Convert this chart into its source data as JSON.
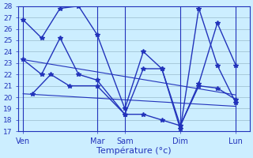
{
  "xlabel": "Température (°c)",
  "bg_color": "#cceeff",
  "line_color": "#2233bb",
  "grid_color": "#99bbcc",
  "ylim": [
    17,
    28
  ],
  "yticks": [
    17,
    18,
    19,
    20,
    21,
    22,
    23,
    24,
    25,
    26,
    27,
    28
  ],
  "day_tick_positions": [
    0,
    8,
    11,
    17,
    23
  ],
  "day_tick_labels": [
    "Ven",
    "Mar",
    "Sam",
    "Dim",
    "Lun"
  ],
  "day_sep_x": [
    0,
    8,
    11,
    17,
    23
  ],
  "xlim": [
    -0.5,
    24.5
  ],
  "line1_x": [
    0,
    2,
    4,
    6,
    8,
    11,
    13,
    15,
    17,
    19,
    21,
    23
  ],
  "line1_y": [
    26.8,
    25.2,
    27.8,
    28.0,
    25.5,
    19.0,
    24.0,
    22.5,
    17.2,
    27.8,
    22.8,
    19.5
  ],
  "line2_x": [
    0,
    2,
    4,
    6,
    8,
    11,
    13,
    15,
    17,
    19,
    21,
    23
  ],
  "line2_y": [
    23.3,
    22.0,
    25.2,
    22.0,
    21.5,
    18.5,
    22.5,
    22.5,
    17.5,
    21.2,
    26.5,
    22.8
  ],
  "line3_x": [
    1,
    3,
    5,
    8,
    11,
    13,
    15,
    17,
    19,
    21,
    23
  ],
  "line3_y": [
    20.3,
    22.0,
    21.0,
    21.0,
    18.5,
    18.5,
    18.0,
    17.5,
    21.0,
    20.8,
    19.8
  ],
  "trend1_x": [
    0,
    23
  ],
  "trend1_y": [
    23.3,
    20.2
  ],
  "trend2_x": [
    0,
    23
  ],
  "trend2_y": [
    20.3,
    19.2
  ]
}
